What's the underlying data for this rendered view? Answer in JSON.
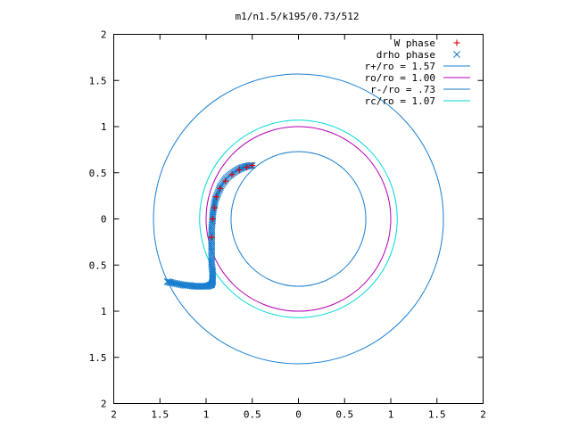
{
  "chart_data": {
    "type": "scatter",
    "title": "m1/n1.5/k195/0.73/512",
    "xlim": [
      -2,
      2
    ],
    "ylim": [
      -2,
      2
    ],
    "x_tick_labels": [
      "2",
      "1.5",
      "1",
      "0.5",
      "0",
      "0.5",
      "1",
      "1.5",
      "2"
    ],
    "y_tick_labels": [
      "2",
      "1.5",
      "1",
      "0.5",
      "0",
      "0.5",
      "1",
      "1.5",
      "2"
    ],
    "grid": false,
    "legend_position": "top-right",
    "circles": [
      {
        "label": "r+/ro = 1.57",
        "radius": 1.57,
        "color": "#1a7ecf"
      },
      {
        "label": "ro/ro = 1.00",
        "radius": 1.0,
        "color": "#b000b0"
      },
      {
        "label": "r-/ro = .73",
        "radius": 0.73,
        "color": "#1a7ecf"
      },
      {
        "label": "rc/ro = 1.07",
        "radius": 1.07,
        "color": "#00d8d8"
      }
    ],
    "series": [
      {
        "name": "W phase",
        "marker": "+",
        "color": "#e00000",
        "x": [
          -0.5,
          -0.56,
          -0.64,
          -0.72,
          -0.79,
          -0.85,
          -0.89,
          -0.91,
          -0.93,
          -0.94
        ],
        "y": [
          0.58,
          0.56,
          0.53,
          0.48,
          0.41,
          0.33,
          0.24,
          0.12,
          0.0,
          -0.2
        ]
      },
      {
        "name": "drho phase",
        "marker": "x",
        "color": "#1a7ecf",
        "x": [
          -0.5,
          -0.54,
          -0.58,
          -0.62,
          -0.66,
          -0.7,
          -0.74,
          -0.78,
          -0.81,
          -0.84,
          -0.86,
          -0.88,
          -0.9,
          -0.91,
          -0.92,
          -0.93,
          -0.93,
          -0.94,
          -0.94,
          -0.94,
          -0.94,
          -0.94,
          -0.94,
          -0.94,
          -0.93,
          -0.93,
          -0.93,
          -0.93,
          -0.94,
          -0.96,
          -0.99,
          -1.03,
          -1.08,
          -1.13,
          -1.18,
          -1.23,
          -1.28,
          -1.33,
          -1.38,
          -1.42
        ],
        "y": [
          0.58,
          0.575,
          0.565,
          0.55,
          0.53,
          0.505,
          0.475,
          0.44,
          0.4,
          0.355,
          0.31,
          0.26,
          0.21,
          0.16,
          0.1,
          0.04,
          -0.02,
          -0.09,
          -0.16,
          -0.23,
          -0.3,
          -0.37,
          -0.44,
          -0.5,
          -0.56,
          -0.61,
          -0.65,
          -0.68,
          -0.71,
          -0.72,
          -0.73,
          -0.73,
          -0.73,
          -0.73,
          -0.72,
          -0.72,
          -0.71,
          -0.7,
          -0.69,
          -0.68
        ]
      }
    ]
  }
}
